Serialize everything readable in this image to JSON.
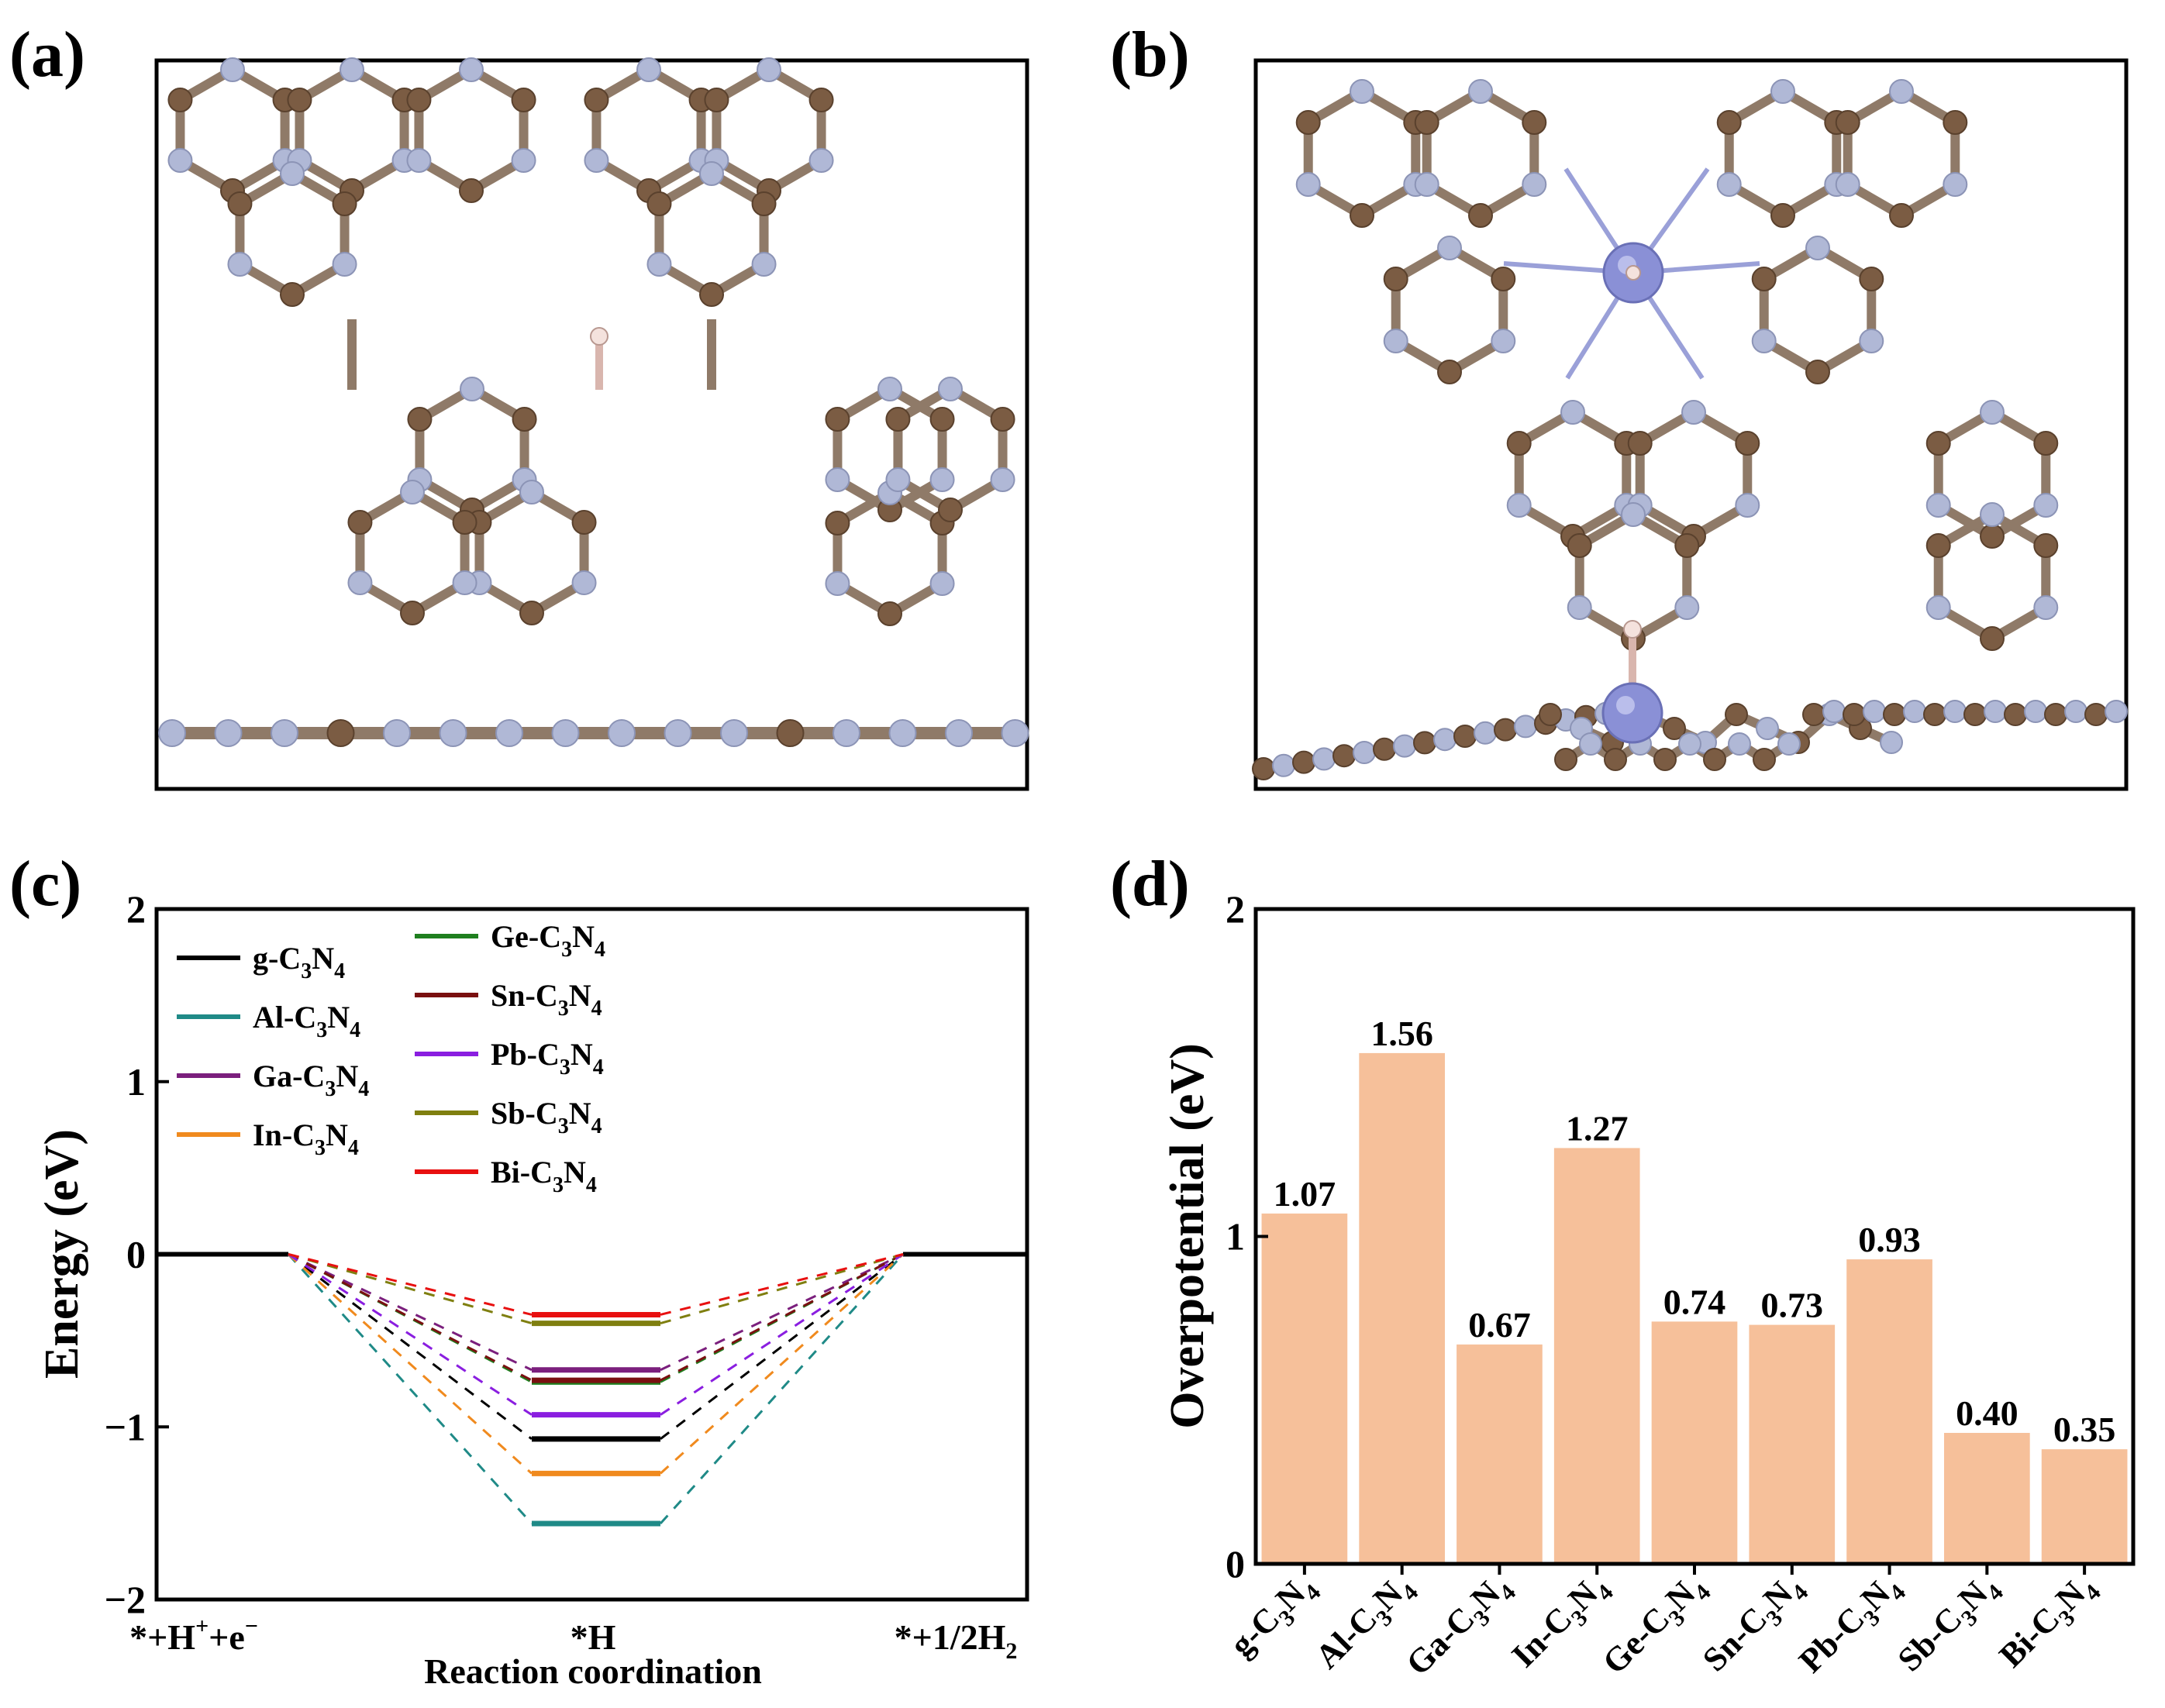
{
  "panels": {
    "a": {
      "label": "(a)"
    },
    "b": {
      "label": "(b)"
    },
    "c": {
      "label": "(c)"
    },
    "d": {
      "label": "(d)"
    }
  },
  "colors": {
    "carbon": "#7b5c43",
    "nitrogen": "#b0b8d6",
    "metal": "#8a90d6",
    "hydrogen": "#f2dcd6",
    "bar": "#f6c09a"
  },
  "chart_data": [
    {
      "id": "c",
      "type": "line",
      "title": "",
      "xlabel": "Reaction coordination",
      "ylabel": "Energy (eV)",
      "ylim": [
        -2,
        2
      ],
      "yticks": [
        "2",
        "1",
        "0",
        "−1",
        "−2"
      ],
      "categories": [
        "*+H⁺+e⁻",
        "*H",
        "*+1/2H₂"
      ],
      "x_ticklabels": [
        {
          "main": "*+H",
          "sup1": "+",
          "mid": "+e",
          "sup2": "−"
        },
        {
          "main": "*H"
        },
        {
          "main": "*+1/2H",
          "sub": "2"
        }
      ],
      "series": [
        {
          "name": "g-C3N4",
          "m": "g",
          "color": "#000000",
          "values": [
            0,
            -1.07,
            0
          ]
        },
        {
          "name": "Al-C3N4",
          "m": "Al",
          "color": "#1f8a87",
          "values": [
            0,
            -1.56,
            0
          ]
        },
        {
          "name": "Ga-C3N4",
          "m": "Ga",
          "color": "#7b1f7d",
          "values": [
            0,
            -0.67,
            0
          ]
        },
        {
          "name": "In-C3N4",
          "m": "In",
          "color": "#f08a1e",
          "values": [
            0,
            -1.27,
            0
          ]
        },
        {
          "name": "Ge-C3N4",
          "m": "Ge",
          "color": "#1f7f1f",
          "values": [
            0,
            -0.74,
            0
          ]
        },
        {
          "name": "Sn-C3N4",
          "m": "Sn",
          "color": "#7a1010",
          "values": [
            0,
            -0.73,
            0
          ]
        },
        {
          "name": "Pb-C3N4",
          "m": "Pb",
          "color": "#8a1ee0",
          "values": [
            0,
            -0.93,
            0
          ]
        },
        {
          "name": "Sb-C3N4",
          "m": "Sb",
          "color": "#7f7f10",
          "values": [
            0,
            -0.4,
            0
          ]
        },
        {
          "name": "Bi-C3N4",
          "m": "Bi",
          "color": "#e81010",
          "values": [
            0,
            -0.35,
            0
          ]
        }
      ],
      "legend": "top-left"
    },
    {
      "id": "d",
      "type": "bar",
      "title": "",
      "xlabel": "",
      "ylabel": "Overpotential (eV)",
      "ylim": [
        0,
        2
      ],
      "yticks": [
        "0",
        "1",
        "2"
      ],
      "categories": [
        "g-C3N4",
        "Al-C3N4",
        "Ga-C3N4",
        "In-C3N4",
        "Ge-C3N4",
        "Sn-C3N4",
        "Pb-C3N4",
        "Sb-C3N4",
        "Bi-C3N4"
      ],
      "category_prefix": [
        "g",
        "Al",
        "Ga",
        "In",
        "Ge",
        "Sn",
        "Pb",
        "Sb",
        "Bi"
      ],
      "values": [
        1.07,
        1.56,
        0.67,
        1.27,
        0.74,
        0.73,
        0.93,
        0.4,
        0.35
      ],
      "value_labels": [
        "1.07",
        "1.56",
        "0.67",
        "1.27",
        "0.74",
        "0.73",
        "0.93",
        "0.40",
        "0.35"
      ]
    }
  ]
}
